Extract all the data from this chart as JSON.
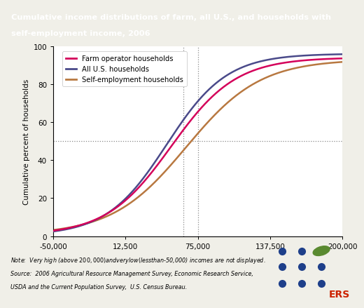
{
  "title_line1": "Cumulative income distributions of farm, all U.S., and households with",
  "title_line2": "self-employment income, 2006",
  "title_bg_color": "#1b3a5c",
  "title_text_color": "white",
  "ylabel": "Cumulative percent of households",
  "xlim": [
    -50000,
    200000
  ],
  "ylim": [
    0,
    100
  ],
  "xticks": [
    -50000,
    12500,
    75000,
    137500,
    200000
  ],
  "xtick_labels": [
    "-50,000",
    "12,500",
    "75,000",
    "137,500",
    "200,000"
  ],
  "yticks": [
    0,
    20,
    40,
    60,
    80,
    100
  ],
  "hline_y": 50,
  "vline_x1": 62500,
  "vline_x2": 75000,
  "farm_color": "#d4005a",
  "all_us_color": "#4a4a8a",
  "self_emp_color": "#b87840",
  "legend_labels": [
    "Farm operator households",
    "All U.S. households",
    "Self-employment households"
  ],
  "note_line1": "Note:  Very high (above $200,000) and very low (less than $-50,000) incomes are not displayed.",
  "note_line2": "Source:  2006 Agricultural Resource Management Survey, Economic Research Service,",
  "note_line3": "USDA and the Current Population Survey,  U.S. Census Bureau.",
  "bg_color": "#f0efe8",
  "plot_bg_color": "white",
  "ers_dot_color": "#1e3f8a",
  "ers_leaf_color": "#5a8a30",
  "ers_text_color": "#cc2200"
}
